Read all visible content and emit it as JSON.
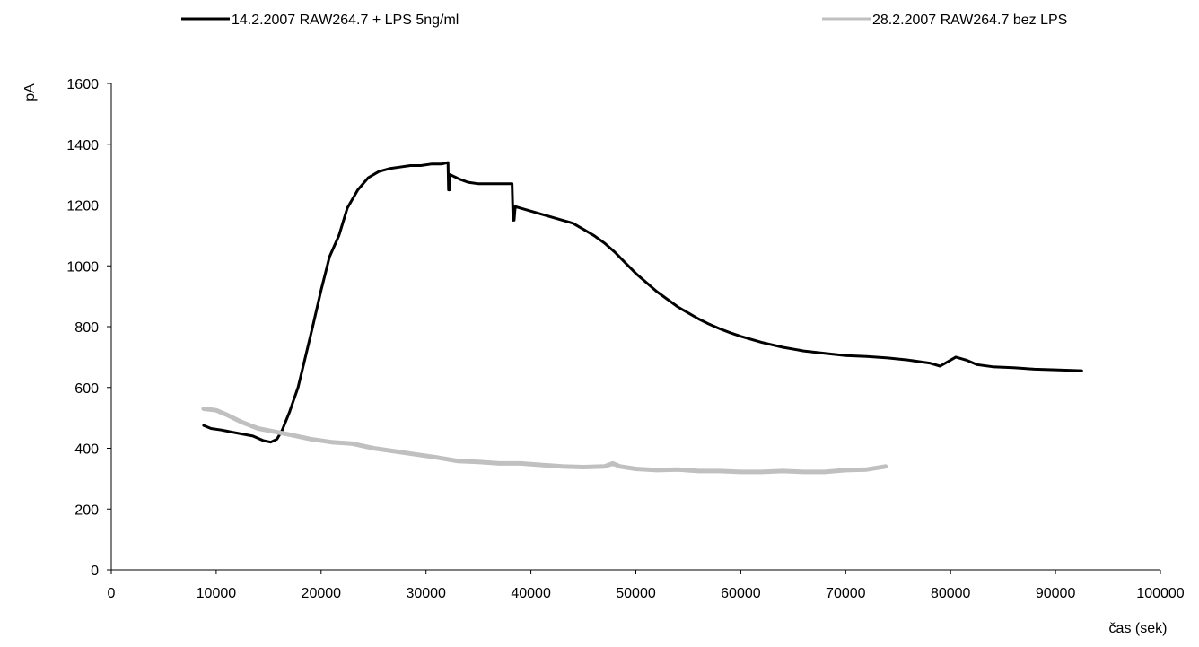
{
  "chart_data": {
    "type": "line",
    "xlabel": "čas (sek)",
    "ylabel": "pA",
    "xlim": [
      0,
      100000
    ],
    "ylim": [
      0,
      1600
    ],
    "x_ticks": [
      "0",
      "10000",
      "20000",
      "30000",
      "40000",
      "50000",
      "60000",
      "70000",
      "80000",
      "90000",
      "100000"
    ],
    "y_ticks": [
      "0",
      "200",
      "400",
      "600",
      "800",
      "1000",
      "1200",
      "1400",
      "1600"
    ],
    "grid": false,
    "legend_position": "top",
    "series": [
      {
        "name": "14.2.2007 RAW264.7 + LPS 5ng/ml",
        "color": "#000000",
        "x": [
          8800,
          9500,
          10500,
          12000,
          13500,
          14500,
          15200,
          15800,
          16300,
          17000,
          17800,
          18500,
          19200,
          20000,
          20800,
          21700,
          22500,
          23500,
          24500,
          25500,
          26500,
          27500,
          28500,
          29500,
          30500,
          31500,
          32100,
          32150,
          32250,
          32300,
          32600,
          33200,
          34000,
          35000,
          36000,
          37000,
          38200,
          38300,
          38400,
          38500,
          39000,
          40000,
          41000,
          42000,
          43000,
          44000,
          45000,
          46000,
          47000,
          48000,
          49000,
          50000,
          51000,
          52000,
          53000,
          54000,
          55000,
          56000,
          57000,
          58000,
          59000,
          60000,
          62000,
          64000,
          66000,
          68000,
          70000,
          72000,
          74000,
          76000,
          78000,
          79000,
          80000,
          80500,
          81500,
          82500,
          84000,
          86000,
          88000,
          90000,
          92500
        ],
        "y": [
          475,
          465,
          460,
          450,
          440,
          425,
          420,
          430,
          460,
          520,
          600,
          700,
          800,
          920,
          1030,
          1100,
          1190,
          1250,
          1290,
          1310,
          1320,
          1325,
          1330,
          1330,
          1335,
          1335,
          1340,
          1250,
          1250,
          1300,
          1295,
          1285,
          1275,
          1270,
          1270,
          1270,
          1270,
          1150,
          1150,
          1195,
          1190,
          1180,
          1170,
          1160,
          1150,
          1140,
          1120,
          1100,
          1075,
          1045,
          1010,
          975,
          945,
          915,
          890,
          865,
          845,
          825,
          808,
          793,
          780,
          768,
          748,
          732,
          720,
          712,
          705,
          702,
          697,
          690,
          680,
          670,
          690,
          700,
          690,
          675,
          668,
          665,
          660,
          658,
          655
        ]
      },
      {
        "name": "28.2.2007 RAW264.7 bez LPS",
        "color": "#c0c0c0",
        "x": [
          8800,
          10000,
          11000,
          12500,
          14000,
          15500,
          17000,
          19000,
          21000,
          23000,
          25000,
          27000,
          29000,
          31000,
          33000,
          35000,
          37000,
          39000,
          41000,
          43000,
          45000,
          47000,
          47800,
          48500,
          50000,
          52000,
          54000,
          56000,
          58000,
          60000,
          62000,
          64000,
          66000,
          68000,
          70000,
          72000,
          73800
        ],
        "y": [
          530,
          525,
          510,
          485,
          465,
          455,
          445,
          430,
          420,
          415,
          400,
          390,
          380,
          370,
          358,
          355,
          350,
          350,
          345,
          340,
          338,
          340,
          350,
          340,
          332,
          328,
          330,
          325,
          325,
          322,
          322,
          325,
          322,
          322,
          328,
          330,
          340
        ]
      }
    ]
  }
}
